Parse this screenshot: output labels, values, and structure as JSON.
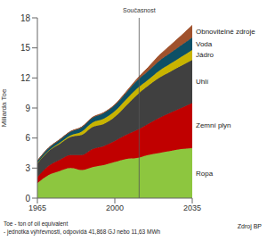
{
  "chart_data": {
    "type": "area",
    "stacked": true,
    "y_label": "Miliarda Toe",
    "x": [
      1965,
      1970,
      1975,
      1980,
      1985,
      1990,
      1995,
      2000,
      2005,
      2010,
      2015,
      2020,
      2025,
      2030,
      2035
    ],
    "series": [
      {
        "name": "Ropa",
        "color": "#8dc63f",
        "values": [
          1.5,
          2.3,
          2.7,
          3.0,
          2.8,
          3.1,
          3.3,
          3.6,
          3.9,
          4.0,
          4.3,
          4.5,
          4.7,
          4.9,
          5.0
        ]
      },
      {
        "name": "Zemní plyn",
        "color": "#c00000",
        "values": [
          0.6,
          0.9,
          1.1,
          1.3,
          1.5,
          1.8,
          1.9,
          2.1,
          2.4,
          2.8,
          3.1,
          3.5,
          3.8,
          4.1,
          4.5
        ]
      },
      {
        "name": "Uhlí",
        "color": "#404040",
        "values": [
          1.4,
          1.5,
          1.6,
          1.8,
          2.0,
          2.2,
          2.2,
          2.4,
          2.9,
          3.5,
          3.8,
          4.0,
          4.1,
          4.2,
          4.3
        ]
      },
      {
        "name": "Jádro",
        "color": "#c8b400",
        "values": [
          0.01,
          0.02,
          0.1,
          0.16,
          0.34,
          0.45,
          0.53,
          0.58,
          0.62,
          0.63,
          0.6,
          0.7,
          0.8,
          0.9,
          1.0
        ]
      },
      {
        "name": "Voda",
        "color": "#0d5066",
        "values": [
          0.21,
          0.27,
          0.32,
          0.38,
          0.43,
          0.49,
          0.56,
          0.6,
          0.66,
          0.78,
          0.88,
          0.98,
          1.07,
          1.16,
          1.25
        ]
      },
      {
        "name": "Obnovitelné zdroje",
        "color": "#a0522d",
        "values": [
          0.01,
          0.01,
          0.01,
          0.02,
          0.03,
          0.04,
          0.05,
          0.06,
          0.1,
          0.18,
          0.35,
          0.55,
          0.75,
          0.95,
          1.2
        ]
      }
    ],
    "xlim": [
      1965,
      2035
    ],
    "xticks": [
      1965,
      2000,
      2035
    ],
    "ylim": [
      0,
      18
    ],
    "yticks": [
      0,
      3,
      6,
      9,
      12,
      15,
      18
    ],
    "grid": false,
    "annotations": [
      {
        "x": 2011,
        "label": "Současnost"
      }
    ],
    "footnotes": [
      "Toe - ton of oil equivalent",
      "- jednotka výhřevnosti, odpovídá 41,868 GJ nebo 11,63 MWh"
    ],
    "source": "Zdroj BP"
  }
}
